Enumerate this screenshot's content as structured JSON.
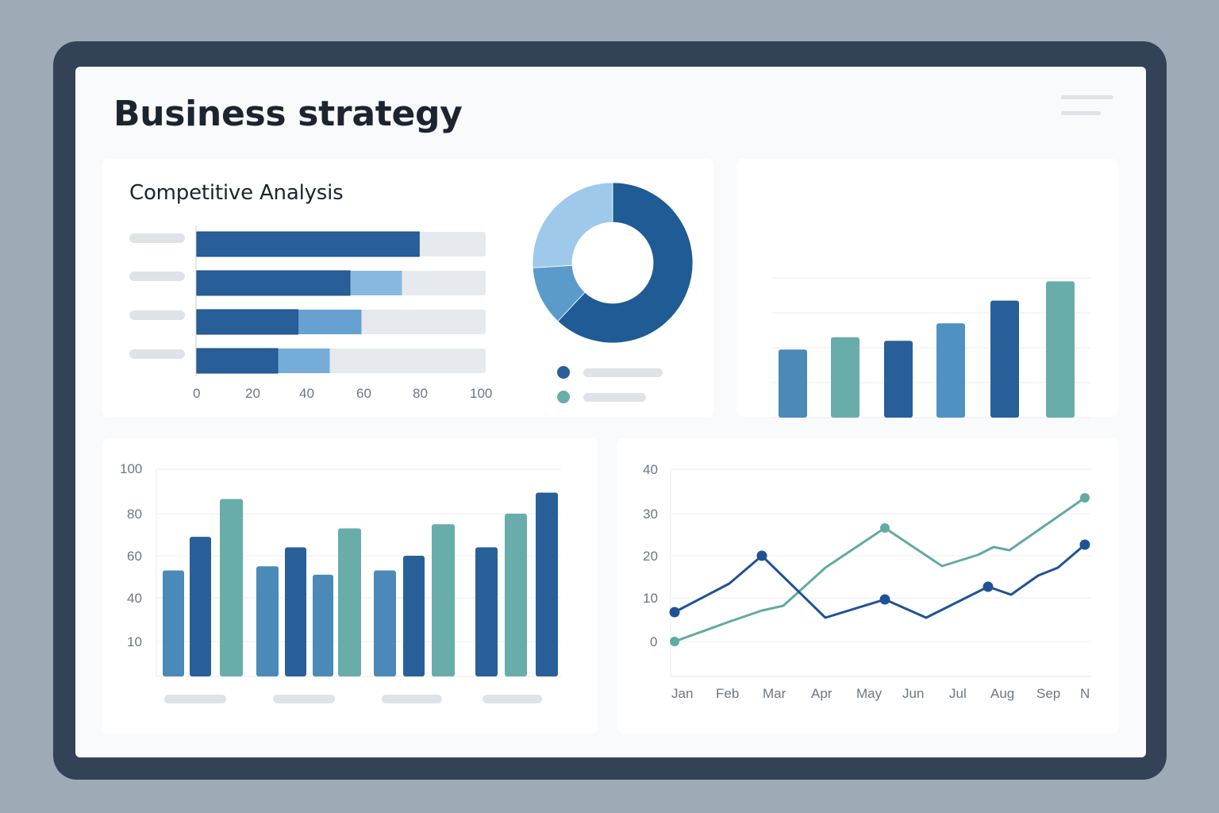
{
  "page": {
    "title": "Business strategy",
    "menu_icon": "hamburger-menu-icon"
  },
  "colors": {
    "dark_blue": "#285f99",
    "mid_blue": "#4a89b8",
    "light_blue": "#8cbde3",
    "pale_blue": "#9ec9ea",
    "teal": "#68ada9",
    "track": "#e6e9ed",
    "placeholder": "#dfe2e6",
    "frame": "#344257",
    "backdrop": "#9eaab6"
  },
  "competitive_analysis": {
    "title": "Competitive Analysis",
    "x_ticks": [
      "0",
      "20",
      "40",
      "60",
      "80",
      "100"
    ]
  },
  "bottom_bar_chart": {
    "y_ticks": [
      "100",
      "80",
      "60",
      "40",
      "10"
    ]
  },
  "line_chart": {
    "y_ticks": [
      "40",
      "30",
      "20",
      "10",
      "0"
    ],
    "x_ticks": [
      "Jan",
      "Feb",
      "Mar",
      "Apr",
      "May",
      "Jun",
      "Jul",
      "Aug",
      "Sep",
      "N"
    ]
  },
  "chart_data": [
    {
      "id": "competitive-analysis-bars",
      "type": "bar",
      "orientation": "horizontal",
      "stacked": true,
      "title": "Competitive Analysis",
      "categories": [
        "",
        "",
        "",
        ""
      ],
      "series": [
        {
          "name": "primary",
          "color": "#285f99",
          "values": [
            77,
            53,
            35,
            28
          ]
        },
        {
          "name": "secondary",
          "color": "#8cbde3",
          "values": [
            0,
            18,
            22,
            18
          ]
        }
      ],
      "xlim": [
        0,
        100
      ],
      "x_ticks": [
        0,
        20,
        40,
        60,
        80,
        100
      ],
      "track_max": 100
    },
    {
      "id": "market-share-donut",
      "type": "pie",
      "donut": true,
      "values": [
        62,
        12,
        26
      ],
      "colors": [
        "#1f5b94",
        "#5b9bcb",
        "#9ec9ea"
      ],
      "legend": [
        {
          "color": "#285f99",
          "label": ""
        },
        {
          "color": "#68ada9",
          "label": ""
        }
      ]
    },
    {
      "id": "growth-bars",
      "type": "bar",
      "categories": [
        "",
        "",
        "",
        "",
        "",
        ""
      ],
      "values": [
        39,
        46,
        44,
        54,
        67,
        78
      ],
      "colors": [
        "#4a89b8",
        "#68ada9",
        "#285f99",
        "#4f92c2",
        "#285f99",
        "#68ada9"
      ],
      "ylim": [
        0,
        80
      ],
      "grid": true,
      "legend": [
        "",
        ""
      ]
    },
    {
      "id": "grouped-bars",
      "type": "bar",
      "y_ticks": [
        "100",
        "80",
        "60",
        "40",
        "10"
      ],
      "ylim": [
        0,
        100
      ],
      "grid": true,
      "groups": [
        {
          "label": "",
          "values": [
            53,
            69,
            87
          ],
          "colors": [
            "#4a89b8",
            "#285f99",
            "#68ada9"
          ]
        },
        {
          "label": "",
          "values": [
            55,
            64,
            51,
            73
          ],
          "colors": [
            "#4a89b8",
            "#285f99",
            "#4a89b8",
            "#68ada9"
          ]
        },
        {
          "label": "",
          "values": [
            53,
            60,
            75
          ],
          "colors": [
            "#4a89b8",
            "#285f99",
            "#68ada9"
          ]
        },
        {
          "label": "",
          "values": [
            64,
            80,
            90
          ],
          "colors": [
            "#285f99",
            "#68ada9",
            "#285f99"
          ]
        }
      ]
    },
    {
      "id": "monthly-trend",
      "type": "line",
      "x": [
        "Jan",
        "Feb",
        "Mar",
        "Apr",
        "May",
        "Jun",
        "Jul",
        "Aug",
        "Sep",
        "N"
      ],
      "series": [
        {
          "name": "series-dark",
          "color": "#1f5294",
          "values": [
            6.5,
            13,
            20,
            6,
            10,
            5.5,
            9,
            12.5,
            15,
            22.5
          ],
          "markers_at": [
            "Jan",
            "Mar",
            "May",
            "Aug",
            "N"
          ]
        },
        {
          "name": "series-teal",
          "color": "#63aaa2",
          "values": [
            0,
            4,
            7,
            16,
            26.5,
            21,
            17.5,
            22,
            28,
            33.5
          ],
          "markers_at": [
            "Jan",
            "May",
            "N"
          ]
        }
      ],
      "y_ticks": [
        0,
        10,
        20,
        30,
        40
      ],
      "ylim": [
        -8,
        40
      ],
      "grid": true
    }
  ]
}
